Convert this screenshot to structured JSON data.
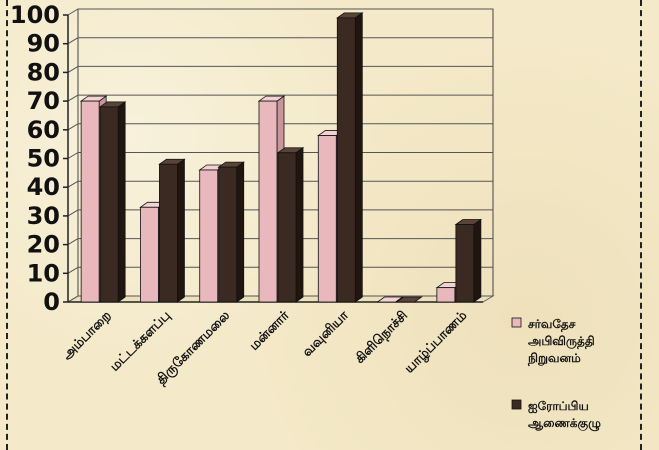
{
  "chart_data": {
    "type": "bar",
    "categories": [
      "அம்பாறை",
      "மட்டக்களப்பு",
      "திருகோணமலை",
      "மன்னார்",
      "வவுனியா",
      "கிளிநொச்சி",
      "யாழ்ப்பாணம்"
    ],
    "series": [
      {
        "name": "சர்வதேச அபிவிருத்தி நிறுவனம்",
        "values": [
          70,
          33,
          46,
          70,
          58,
          0,
          5
        ]
      },
      {
        "name": "ஐரோப்பிய ஆணைக்குழு",
        "values": [
          68,
          48,
          47,
          52,
          99,
          0,
          27
        ]
      }
    ],
    "ylim": [
      0,
      100
    ],
    "yticks": [
      "0",
      "10",
      "20",
      "30",
      "40",
      "50",
      "60",
      "70",
      "80",
      "90",
      "100"
    ],
    "grid": true,
    "legend": "right",
    "legend_lines": [
      [
        "சர்வதேச",
        "அபிவிருத்தி",
        "நிறுவனம்"
      ],
      [
        "ஐரோப்பிய",
        "ஆணைக்குழு"
      ]
    ],
    "colors": {
      "series1": "#e8b8bc",
      "series1_side": "#c9959a",
      "series1_top": "#f3d2d4",
      "series2": "#3b2a22",
      "series2_side": "#21160f",
      "series2_top": "#5a4438"
    }
  }
}
